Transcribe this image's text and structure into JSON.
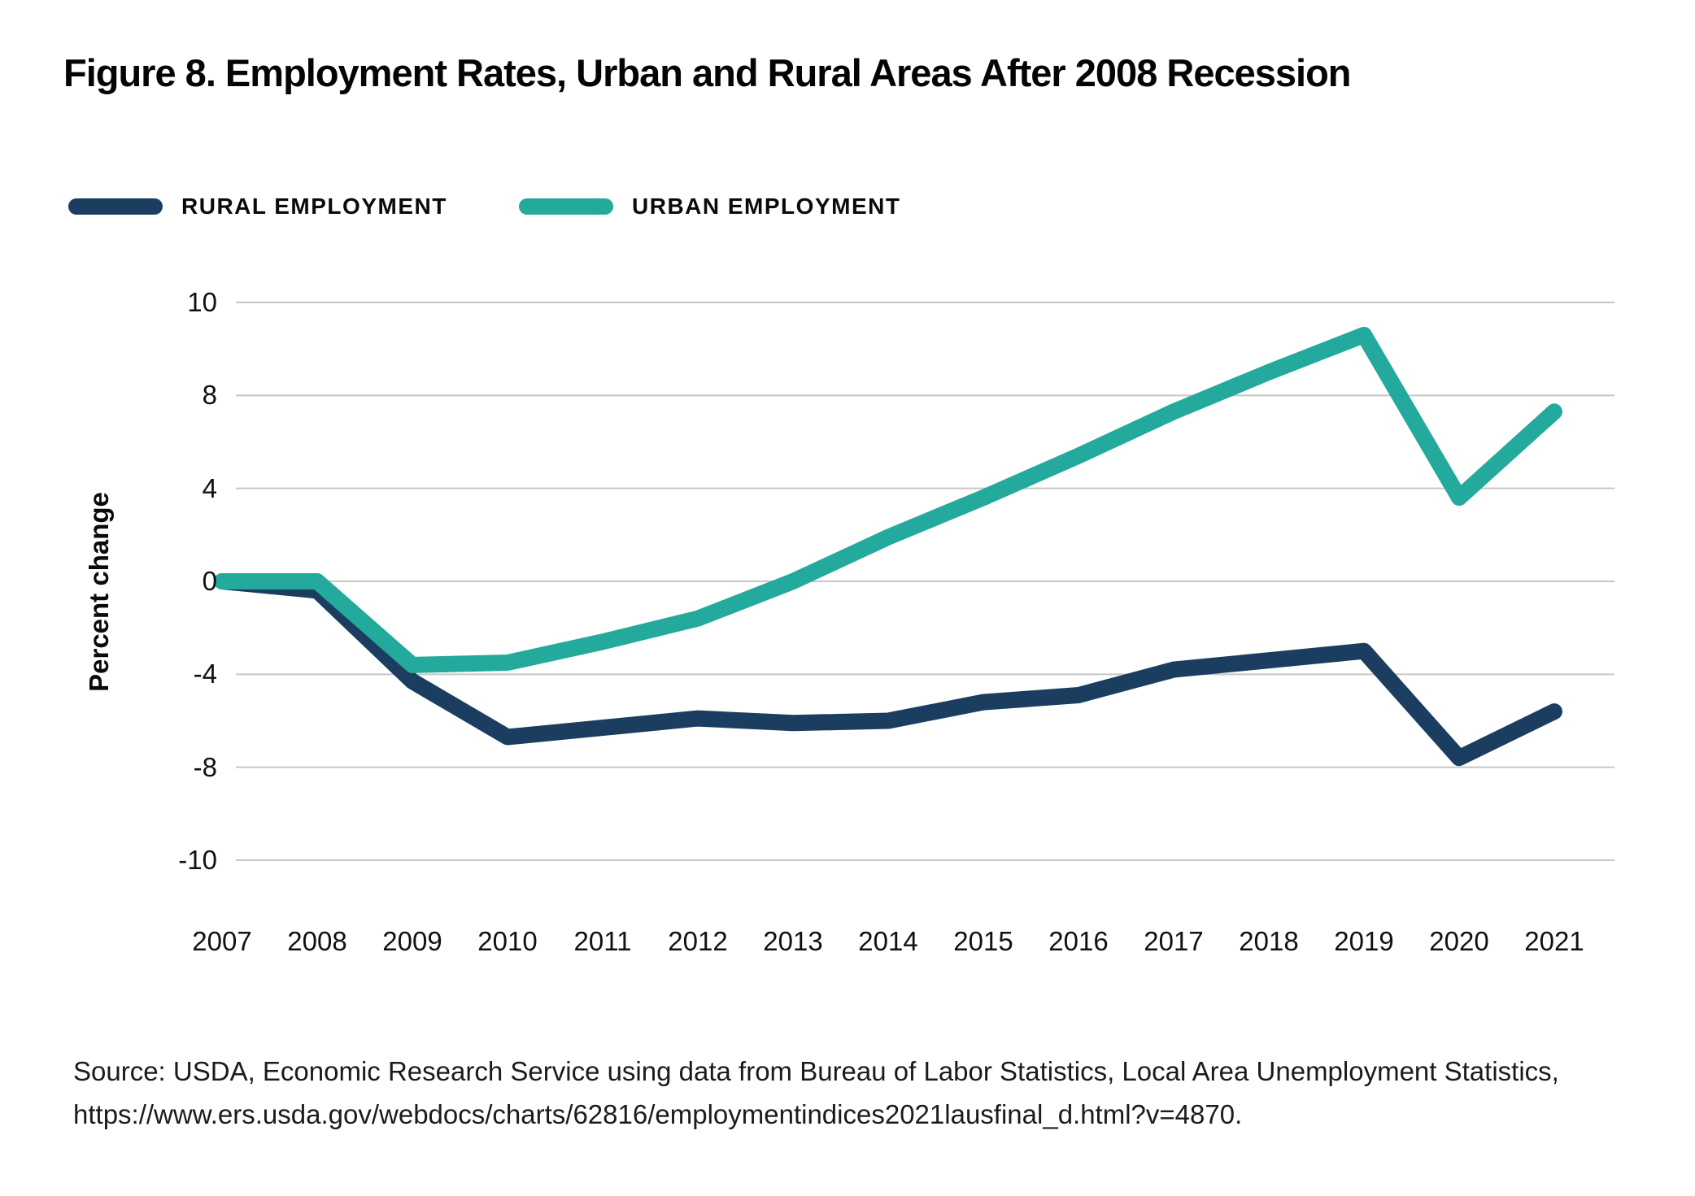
{
  "title": "Figure 8. Employment Rates, Urban and Rural Areas After 2008 Recession",
  "legend": [
    {
      "label": "RURAL EMPLOYMENT",
      "color": "#1b3e60"
    },
    {
      "label": "URBAN EMPLOYMENT",
      "color": "#24aa9d"
    }
  ],
  "chart_data": {
    "type": "line",
    "title": "Figure 8. Employment Rates, Urban and Rural Areas After 2008 Recession",
    "xlabel": "",
    "ylabel": "Percent change",
    "categories": [
      "2007",
      "2008",
      "2009",
      "2010",
      "2011",
      "2012",
      "2013",
      "2014",
      "2015",
      "2016",
      "2017",
      "2018",
      "2019",
      "2020",
      "2021"
    ],
    "series": [
      {
        "name": "RURAL EMPLOYMENT",
        "color": "#1b3e60",
        "values": [
          0,
          -0.4,
          -4.3,
          -6.7,
          -6.3,
          -5.9,
          -6.1,
          -6.0,
          -5.2,
          -4.9,
          -3.8,
          -3.4,
          -3.0,
          -7.6,
          -5.6
        ]
      },
      {
        "name": "URBAN EMPLOYMENT",
        "color": "#24aa9d",
        "values": [
          0,
          0,
          -3.6,
          -3.5,
          -2.6,
          -1.6,
          0,
          1.9,
          3.6,
          5.4,
          7.3,
          8.5,
          9.3,
          3.6,
          7.3
        ]
      }
    ],
    "y_tick_labels": [
      "10",
      "8",
      "4",
      "0",
      "-4",
      "-8",
      "-10"
    ],
    "ylim": [
      -10,
      10
    ],
    "grid": "horizontal-only",
    "gridline_color": "#c6c6c6",
    "legend_position": "top-left"
  },
  "source": {
    "line1": "Source: USDA, Economic Research Service using data from Bureau of Labor Statistics, Local Area Unemployment Statistics,",
    "line2": "https://www.ers.usda.gov/webdocs/charts/62816/employmentindices2021lausfinal_d.html?v=4870."
  }
}
